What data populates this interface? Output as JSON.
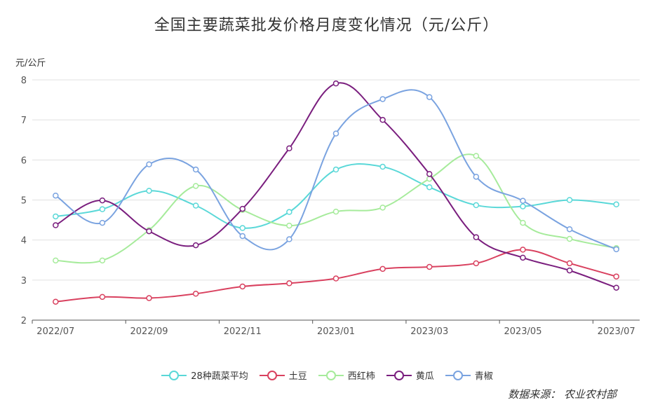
{
  "chart_data": {
    "type": "line",
    "title": "全国主要蔬菜批发价格月度变化情况（元/公斤）",
    "ylabel": "元/公斤",
    "xlabel": "",
    "ylim": [
      2,
      8
    ],
    "yticks": [
      "2",
      "3",
      "4",
      "5",
      "6",
      "7",
      "8"
    ],
    "categories": [
      "2022/07",
      "2022/08",
      "2022/09",
      "2022/10",
      "2022/11",
      "2022/12",
      "2023/01",
      "2023/02",
      "2023/03",
      "2023/04",
      "2023/05",
      "2023/06",
      "2023/07"
    ],
    "xtick_labels": [
      "2022/07",
      "2022/09",
      "2022/11",
      "2023/01",
      "2023/03",
      "2023/05",
      "2023/07"
    ],
    "grid": true,
    "legend_position": "bottom",
    "series": [
      {
        "name": "28种蔬菜平均",
        "color": "#5ad8d8",
        "values": [
          4.59,
          4.77,
          5.23,
          4.86,
          4.3,
          4.7,
          5.76,
          5.83,
          5.32,
          4.87,
          4.84,
          5.0,
          4.89
        ]
      },
      {
        "name": "土豆",
        "color": "#d9415f",
        "values": [
          2.46,
          2.58,
          2.55,
          2.66,
          2.84,
          2.92,
          3.04,
          3.28,
          3.33,
          3.42,
          3.76,
          3.42,
          3.09
        ]
      },
      {
        "name": "西红柿",
        "color": "#a6eb9b",
        "values": [
          3.49,
          3.49,
          4.25,
          5.35,
          4.75,
          4.36,
          4.71,
          4.81,
          5.53,
          6.1,
          4.43,
          4.03,
          3.8
        ]
      },
      {
        "name": "黄瓜",
        "color": "#7a1e7e",
        "values": [
          4.37,
          4.99,
          4.22,
          3.87,
          4.78,
          6.29,
          7.91,
          7.0,
          5.65,
          4.07,
          3.56,
          3.24,
          2.81
        ]
      },
      {
        "name": "青椒",
        "color": "#7aa3e0",
        "values": [
          5.11,
          4.43,
          5.89,
          5.76,
          4.1,
          4.02,
          6.66,
          7.52,
          7.57,
          5.58,
          4.98,
          4.27,
          3.77
        ]
      }
    ]
  },
  "source": "数据来源： 农业农村部"
}
